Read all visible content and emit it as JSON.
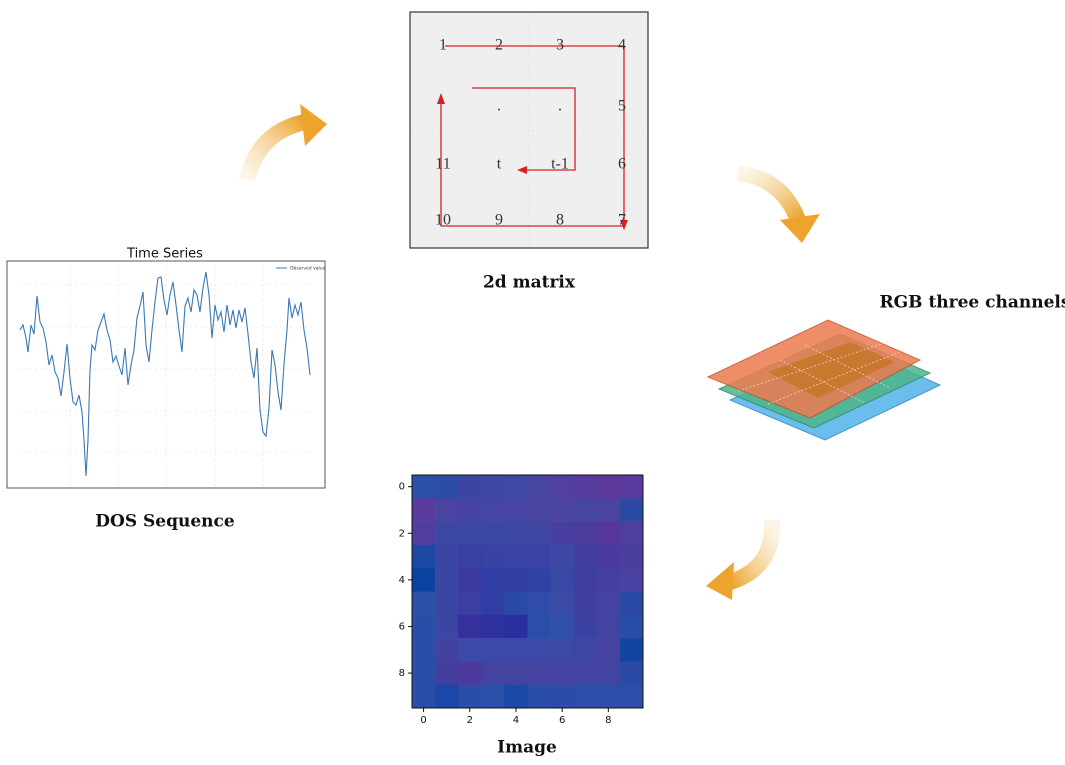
{
  "time_series": {
    "title": "Time Series",
    "legend": "Observed value",
    "caption": "DOS Sequence"
  },
  "matrix": {
    "caption": "2d matrix",
    "rows": [
      [
        "1",
        "2",
        "3",
        "4"
      ],
      [
        null,
        ".",
        ".",
        "5"
      ],
      [
        "11",
        "t",
        "t-1",
        "6"
      ],
      [
        "10",
        "9",
        "8",
        "7"
      ]
    ]
  },
  "rgb": {
    "caption": "RGB three channels"
  },
  "image": {
    "caption": "Image",
    "xticks": [
      0,
      2,
      4,
      6,
      8
    ],
    "yticks": [
      0,
      2,
      4,
      6,
      8
    ],
    "cells": [
      [
        "#2a4fa6",
        "#2d4ca6",
        "#3a46a2",
        "#3d47a4",
        "#3f48a4",
        "#4845a2",
        "#523f9e",
        "#563c9c",
        "#5b399b",
        "#5a3a9c"
      ],
      [
        "#5a3a9c",
        "#4a43a0",
        "#4743a2",
        "#4446a2",
        "#4845a2",
        "#4a44a1",
        "#4a44a0",
        "#4744a2",
        "#4a44a0",
        "#2b4aa4"
      ],
      [
        "#503d9e",
        "#3c47a3",
        "#3b48a4",
        "#3a48a4",
        "#3c48a4",
        "#3f47a3",
        "#463f9f",
        "#4c3c9e",
        "#57379a",
        "#4d3f9d"
      ],
      [
        "#1e48a6",
        "#3a46a2",
        "#3a3fa2",
        "#3a42a4",
        "#3a44a6",
        "#3a44a6",
        "#3d48a4",
        "#423f9e",
        "#4a3c9e",
        "#4a3f9f"
      ],
      [
        "#0a42a0",
        "#3a46a2",
        "#3a3a9e",
        "#2e3ea4",
        "#323ea2",
        "#2f41a4",
        "#3848a4",
        "#3e3f9e",
        "#4540a0",
        "#4a42a0"
      ],
      [
        "#2a50a8",
        "#3a46a2",
        "#3c3fa2",
        "#2f3ea4",
        "#2a4aa8",
        "#2e4ca8",
        "#3a4ba6",
        "#3f40a0",
        "#4543a0",
        "#2a4aa6"
      ],
      [
        "#284ea8",
        "#3a46a2",
        "#36309c",
        "#2e32a0",
        "#2a2e9e",
        "#2d4ea8",
        "#3050aa",
        "#3c42a2",
        "#4244a0",
        "#284ea8"
      ],
      [
        "#2a4ea8",
        "#4242a0",
        "#3a4aa6",
        "#3a4aa6",
        "#3a4aa6",
        "#3b4aa6",
        "#3c4aa6",
        "#3e45a2",
        "#4444a0",
        "#1444a2"
      ],
      [
        "#2a4ea8",
        "#463e9e",
        "#4e3a9c",
        "#4444a0",
        "#4444a0",
        "#4444a0",
        "#4344a2",
        "#4344a2",
        "#4244a0",
        "#2a4aa6"
      ],
      [
        "#2a4ea8",
        "#1a48a6",
        "#2a4ea8",
        "#2a50aa",
        "#1c48a6",
        "#2a4ea8",
        "#2c4ca8",
        "#2d4ea8",
        "#2c4ea8",
        "#2c4ea8"
      ]
    ]
  }
}
